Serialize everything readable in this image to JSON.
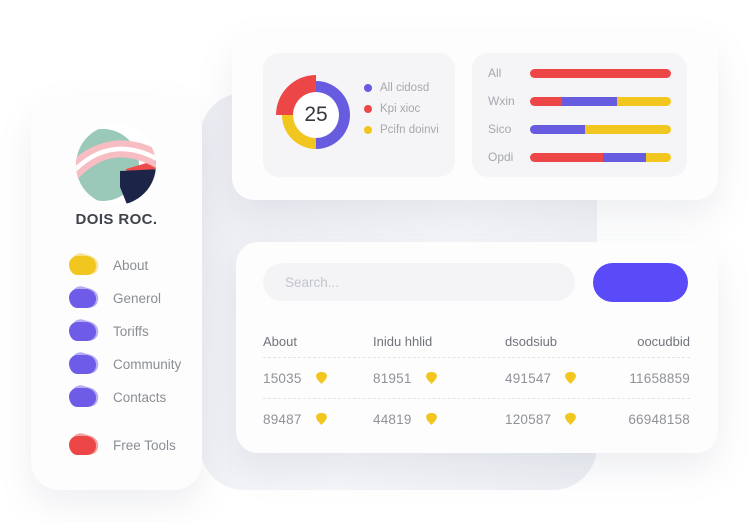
{
  "colors": {
    "red": "#EC4646",
    "blue": "#675CE0",
    "yellow": "#F1C71F",
    "purple": "#6E5BE8",
    "button": "#5B4AF8",
    "navy": "#1C2547",
    "teal": "#9AC8B9",
    "pink": "#F7BDC2"
  },
  "sidebar": {
    "brand": "DOIS ROC.",
    "items": [
      {
        "label": "About",
        "color": "yellow"
      },
      {
        "label": "Generol",
        "color": "purple"
      },
      {
        "label": "Toriffs",
        "color": "purple"
      },
      {
        "label": "Community",
        "color": "purple"
      },
      {
        "label": "Contacts",
        "color": "purple"
      },
      {
        "label": "Free Tools",
        "color": "red"
      }
    ]
  },
  "top_card": {
    "donut_value": "25",
    "legend": [
      {
        "label": "All cidosd",
        "color": "blue"
      },
      {
        "label": "Kpi xioc",
        "color": "red"
      },
      {
        "label": "Pcifn doinvi",
        "color": "yellow"
      }
    ]
  },
  "bottom_card": {
    "search_placeholder": "Search...",
    "table": {
      "headers": [
        "About",
        "Inidu hhlid",
        "dsodsiub",
        "oocudbid"
      ],
      "rows": [
        [
          "15035",
          "81951",
          "491547",
          "11658859"
        ],
        [
          "89487",
          "44819",
          "120587",
          "66948158"
        ]
      ]
    }
  },
  "chart_data": [
    {
      "type": "pie",
      "subtype": "donut",
      "center_label": "25",
      "segments": [
        {
          "label": "All cidosd",
          "color": "blue",
          "value": 50
        },
        {
          "label": "Pcifn doinvi",
          "color": "yellow",
          "value": 25
        },
        {
          "label": "Kpi xioc",
          "color": "red",
          "value": 25,
          "emphasized": true
        }
      ],
      "legend_position": "right"
    },
    {
      "type": "bar",
      "orientation": "horizontal",
      "stacked": true,
      "rows": [
        {
          "label": "All",
          "segments": [
            {
              "color": "red",
              "value": 100
            }
          ]
        },
        {
          "label": "Wxin",
          "segments": [
            {
              "color": "red",
              "value": 23
            },
            {
              "color": "blue",
              "value": 39
            },
            {
              "color": "yellow",
              "value": 38
            }
          ]
        },
        {
          "label": "Sico",
          "segments": [
            {
              "color": "blue",
              "value": 39
            },
            {
              "color": "yellow",
              "value": 61
            }
          ]
        },
        {
          "label": "Opdi",
          "segments": [
            {
              "color": "red",
              "value": 52
            },
            {
              "color": "blue",
              "value": 30
            },
            {
              "color": "yellow",
              "value": 18
            }
          ]
        }
      ]
    }
  ]
}
